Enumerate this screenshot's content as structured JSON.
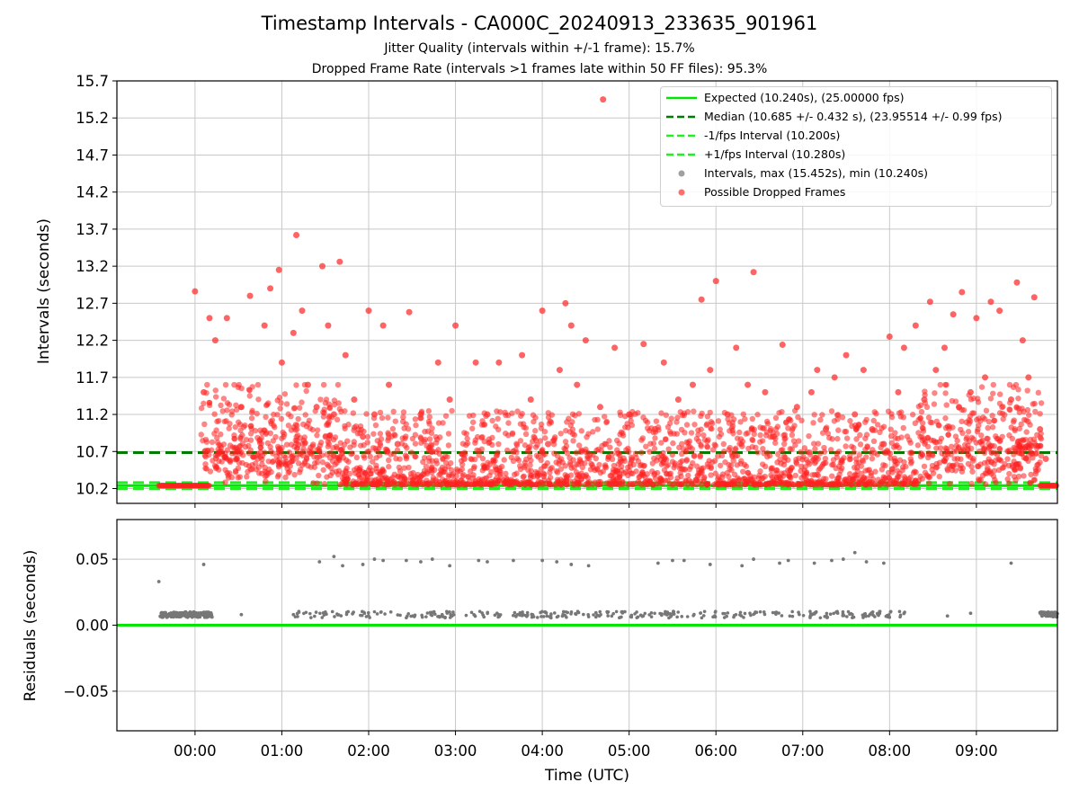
{
  "figure": {
    "title": "Timestamp Intervals - CA000C_20240913_233635_901961",
    "subtitle1": "Jitter Quality (intervals within +/-1 frame): 15.7%",
    "subtitle2": "Dropped Frame Rate (intervals >1 frames late within 50 FF files): 95.3%"
  },
  "legend": {
    "items": [
      {
        "label": "Expected (10.240s), (25.00000 fps)",
        "style": "solid",
        "color": "#00e600"
      },
      {
        "label": "Median (10.685 +/- 0.432 s), (23.95514 +/- 0.99 fps)",
        "style": "dashed",
        "color": "#007a00"
      },
      {
        "label": "-1/fps Interval (10.200s)",
        "style": "dashed",
        "color": "#22ee22"
      },
      {
        "label": "+1/fps Interval (10.280s)",
        "style": "dashed",
        "color": "#22ee22"
      },
      {
        "label": "Intervals, max (15.452s), min (10.240s)",
        "style": "dot",
        "color": "#a0a0a0"
      },
      {
        "label": "Possible Dropped Frames",
        "style": "dot",
        "color": "#ff3030"
      }
    ]
  },
  "chart_data": [
    {
      "type": "scatter",
      "xlabel": "Time (UTC)",
      "ylabel": "Intervals (seconds)",
      "xlim": [
        "23:06",
        "09:56"
      ],
      "xticks": [
        "00:00",
        "01:00",
        "02:00",
        "03:00",
        "04:00",
        "05:00",
        "06:00",
        "07:00",
        "08:00",
        "09:00"
      ],
      "ylim": [
        10.0,
        15.7
      ],
      "yticks": [
        "10.2",
        "10.7",
        "11.2",
        "11.7",
        "12.2",
        "12.7",
        "13.2",
        "13.7",
        "14.2",
        "14.7",
        "15.2",
        "15.7"
      ],
      "grid": true,
      "legend_position": "top-right",
      "lines": [
        {
          "name": "Expected",
          "y": 10.24,
          "style": "solid",
          "color": "#00e600"
        },
        {
          "name": "Median",
          "y": 10.685,
          "style": "dashed",
          "color": "#007a00"
        },
        {
          "name": "-1/fps Interval",
          "y": 10.2,
          "style": "dashed",
          "color": "#22ee22"
        },
        {
          "name": "+1/fps Interval",
          "y": 10.28,
          "style": "dashed",
          "color": "#22ee22"
        }
      ],
      "series": [
        {
          "name": "Possible Dropped Frames",
          "color": "#ff3030",
          "points": [
            [
              "00:00",
              12.86
            ],
            [
              "00:06",
              11.5
            ],
            [
              "00:10",
              12.5
            ],
            [
              "00:14",
              12.2
            ],
            [
              "00:22",
              12.5
            ],
            [
              "00:32",
              11.3
            ],
            [
              "00:38",
              12.8
            ],
            [
              "00:48",
              12.4
            ],
            [
              "00:52",
              12.9
            ],
            [
              "00:58",
              13.15
            ],
            [
              "01:00",
              11.9
            ],
            [
              "01:08",
              12.3
            ],
            [
              "01:10",
              13.62
            ],
            [
              "01:14",
              12.6
            ],
            [
              "01:18",
              11.6
            ],
            [
              "01:24",
              11.3
            ],
            [
              "01:28",
              13.2
            ],
            [
              "01:32",
              12.4
            ],
            [
              "01:36",
              11.2
            ],
            [
              "01:40",
              13.26
            ],
            [
              "01:44",
              12.0
            ],
            [
              "01:50",
              11.4
            ],
            [
              "01:56",
              10.9
            ],
            [
              "02:00",
              12.6
            ],
            [
              "02:04",
              11.2
            ],
            [
              "02:10",
              12.4
            ],
            [
              "02:14",
              11.6
            ],
            [
              "02:20",
              10.8
            ],
            [
              "02:28",
              12.58
            ],
            [
              "02:36",
              11.2
            ],
            [
              "02:44",
              10.7
            ],
            [
              "02:48",
              11.9
            ],
            [
              "02:56",
              11.4
            ],
            [
              "03:00",
              12.4
            ],
            [
              "03:06",
              10.6
            ],
            [
              "03:14",
              11.9
            ],
            [
              "03:22",
              11.2
            ],
            [
              "03:30",
              11.9
            ],
            [
              "03:40",
              10.7
            ],
            [
              "03:46",
              12.0
            ],
            [
              "03:52",
              11.4
            ],
            [
              "04:00",
              12.6
            ],
            [
              "04:04",
              10.8
            ],
            [
              "04:12",
              11.8
            ],
            [
              "04:16",
              12.7
            ],
            [
              "04:20",
              12.4
            ],
            [
              "04:24",
              11.6
            ],
            [
              "04:30",
              12.2
            ],
            [
              "04:40",
              11.3
            ],
            [
              "04:42",
              15.45
            ],
            [
              "04:50",
              12.1
            ],
            [
              "05:00",
              11.2
            ],
            [
              "05:10",
              12.15
            ],
            [
              "05:18",
              11.0
            ],
            [
              "05:24",
              11.9
            ],
            [
              "05:34",
              11.4
            ],
            [
              "05:44",
              11.6
            ],
            [
              "05:50",
              12.75
            ],
            [
              "05:56",
              11.8
            ],
            [
              "06:00",
              13.0
            ],
            [
              "06:08",
              11.2
            ],
            [
              "06:14",
              12.1
            ],
            [
              "06:22",
              11.6
            ],
            [
              "06:26",
              13.12
            ],
            [
              "06:34",
              11.5
            ],
            [
              "06:40",
              10.9
            ],
            [
              "06:46",
              12.14
            ],
            [
              "06:56",
              11.3
            ],
            [
              "07:06",
              11.5
            ],
            [
              "07:10",
              11.8
            ],
            [
              "07:16",
              11.0
            ],
            [
              "07:22",
              11.7
            ],
            [
              "07:30",
              12.0
            ],
            [
              "07:36",
              11.2
            ],
            [
              "07:42",
              11.8
            ],
            [
              "07:48",
              11.0
            ],
            [
              "07:56",
              10.8
            ],
            [
              "08:00",
              12.25
            ],
            [
              "08:06",
              11.5
            ],
            [
              "08:10",
              12.1
            ],
            [
              "08:18",
              12.4
            ],
            [
              "08:24",
              11.4
            ],
            [
              "08:28",
              12.72
            ],
            [
              "08:32",
              11.8
            ],
            [
              "08:38",
              12.1
            ],
            [
              "08:44",
              12.55
            ],
            [
              "08:48",
              11.3
            ],
            [
              "08:50",
              12.85
            ],
            [
              "08:56",
              11.5
            ],
            [
              "09:00",
              12.5
            ],
            [
              "09:06",
              11.7
            ],
            [
              "09:10",
              12.72
            ],
            [
              "09:16",
              12.6
            ],
            [
              "09:24",
              11.4
            ],
            [
              "09:28",
              12.98
            ],
            [
              "09:32",
              12.2
            ],
            [
              "09:36",
              11.7
            ],
            [
              "09:40",
              12.78
            ],
            [
              "09:44",
              11.0
            ],
            [
              "09:48",
              10.6
            ]
          ]
        }
      ]
    },
    {
      "type": "scatter",
      "xlabel": "Time (UTC)",
      "ylabel": "Residuals (seconds)",
      "xlim": [
        "23:06",
        "09:56"
      ],
      "xticks": [
        "00:00",
        "01:00",
        "02:00",
        "03:00",
        "04:00",
        "05:00",
        "06:00",
        "07:00",
        "08:00",
        "09:00"
      ],
      "ylim": [
        -0.08,
        0.08
      ],
      "yticks": [
        "−0.05",
        "0.00",
        "0.05"
      ],
      "grid": true,
      "lines": [
        {
          "name": "zero",
          "y": 0.0,
          "style": "solid",
          "color": "#00e600"
        }
      ],
      "series": [
        {
          "name": "Residuals",
          "color": "#777777",
          "points": [
            [
              "23:35",
              0.033
            ],
            [
              "00:06",
              0.046
            ],
            [
              "00:32",
              0.008
            ],
            [
              "01:08",
              0.008
            ],
            [
              "01:26",
              0.048
            ],
            [
              "01:36",
              0.052
            ],
            [
              "01:42",
              0.045
            ],
            [
              "01:56",
              0.046
            ],
            [
              "02:04",
              0.05
            ],
            [
              "02:10",
              0.049
            ],
            [
              "02:26",
              0.049
            ],
            [
              "02:36",
              0.048
            ],
            [
              "02:44",
              0.05
            ],
            [
              "02:56",
              0.045
            ],
            [
              "03:16",
              0.049
            ],
            [
              "03:22",
              0.048
            ],
            [
              "03:40",
              0.049
            ],
            [
              "04:00",
              0.049
            ],
            [
              "04:10",
              0.048
            ],
            [
              "04:20",
              0.046
            ],
            [
              "04:32",
              0.045
            ],
            [
              "05:20",
              0.047
            ],
            [
              "05:30",
              0.049
            ],
            [
              "05:38",
              0.049
            ],
            [
              "05:56",
              0.046
            ],
            [
              "06:18",
              0.045
            ],
            [
              "06:26",
              0.05
            ],
            [
              "06:44",
              0.047
            ],
            [
              "06:50",
              0.049
            ],
            [
              "07:08",
              0.047
            ],
            [
              "07:20",
              0.049
            ],
            [
              "07:28",
              0.05
            ],
            [
              "07:36",
              0.055
            ],
            [
              "07:44",
              0.048
            ],
            [
              "07:56",
              0.047
            ],
            [
              "08:40",
              0.007
            ],
            [
              "08:56",
              0.009
            ],
            [
              "09:24",
              0.047
            ]
          ]
        }
      ]
    }
  ]
}
